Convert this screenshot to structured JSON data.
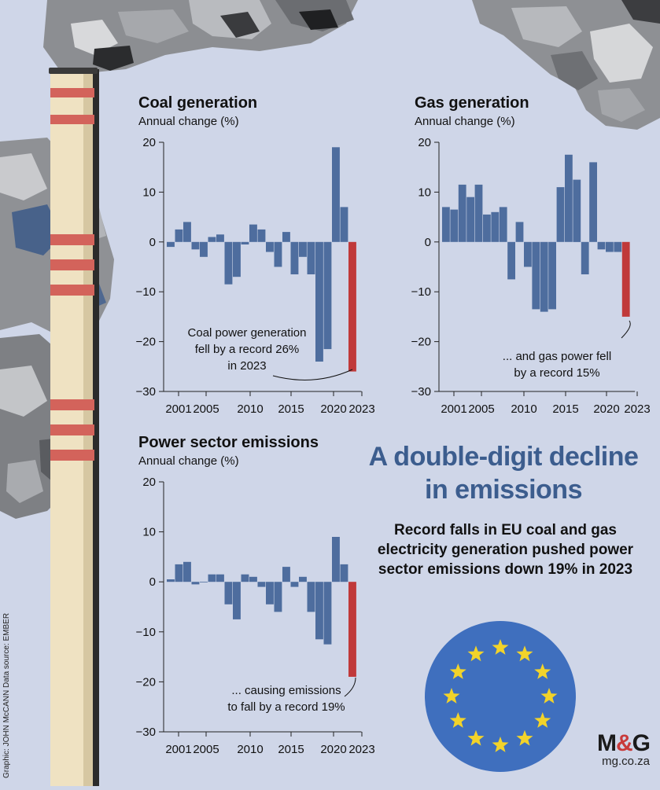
{
  "headline": "A double-digit decline in emissions",
  "subheadline": "Record falls in EU coal and gas electricity generation pushed power sector emissions down 19% in 2023",
  "credit": "Graphic: JOHN McCANN  Data source: EMBER",
  "brand": {
    "logo_left": "M",
    "logo_amp": "&",
    "logo_right": "G",
    "url": "mg.co.za"
  },
  "colors": {
    "bar": "#4e6d9e",
    "highlight": "#c0393a",
    "background": "#cfd6e8",
    "headline": "#3c5d8e",
    "axis": "#222222"
  },
  "chart_data": [
    {
      "type": "bar",
      "title": "Coal generation",
      "ylabel": "Annual change (%)",
      "ylim": [
        -30,
        20
      ],
      "yticks": [
        "20",
        "10",
        "0",
        "−10",
        "−20",
        "−30"
      ],
      "xticks": [
        "2001",
        "2005",
        "2010",
        "2015",
        "2020",
        "2023"
      ],
      "x": [
        2001,
        2002,
        2003,
        2004,
        2005,
        2006,
        2007,
        2008,
        2009,
        2010,
        2011,
        2012,
        2013,
        2014,
        2015,
        2016,
        2017,
        2018,
        2019,
        2020,
        2021,
        2022,
        2023
      ],
      "values": [
        -1,
        2.5,
        4,
        -1.5,
        -3,
        1,
        1.5,
        -8.5,
        -7,
        -0.5,
        3.5,
        2.5,
        -2,
        -5,
        2,
        -6.5,
        -3,
        -6.5,
        -24,
        -21.5,
        19,
        7,
        -26
      ],
      "highlight_index": 22,
      "annotation": [
        "Coal power generation",
        "fell by a record 26%",
        "in 2023"
      ]
    },
    {
      "type": "bar",
      "title": "Gas generation",
      "ylabel": "Annual change (%)",
      "ylim": [
        -30,
        20
      ],
      "yticks": [
        "20",
        "10",
        "0",
        "−10",
        "−20",
        "−30"
      ],
      "xticks": [
        "2001",
        "2005",
        "2010",
        "2015",
        "2020",
        "2023"
      ],
      "x": [
        2001,
        2002,
        2003,
        2004,
        2005,
        2006,
        2007,
        2008,
        2009,
        2010,
        2011,
        2012,
        2013,
        2014,
        2015,
        2016,
        2017,
        2018,
        2019,
        2020,
        2021,
        2022,
        2023
      ],
      "values": [
        7,
        6.5,
        11.5,
        9,
        11.5,
        5.5,
        6,
        7,
        -7.5,
        4,
        -5,
        -13.5,
        -14,
        -13.5,
        11,
        17.5,
        12.5,
        -6.5,
        16,
        -1.5,
        -2,
        -2,
        -15
      ],
      "highlight_index": 22,
      "annotation": [
        "... and gas power fell",
        "by a record 15%"
      ]
    },
    {
      "type": "bar",
      "title": "Power sector emissions",
      "ylabel": "Annual change (%)",
      "ylim": [
        -30,
        20
      ],
      "yticks": [
        "20",
        "10",
        "0",
        "−10",
        "−20",
        "−30"
      ],
      "xticks": [
        "2001",
        "2005",
        "2010",
        "2015",
        "2020",
        "2023"
      ],
      "x": [
        2001,
        2002,
        2003,
        2004,
        2005,
        2006,
        2007,
        2008,
        2009,
        2010,
        2011,
        2012,
        2013,
        2014,
        2015,
        2016,
        2017,
        2018,
        2019,
        2020,
        2021,
        2022,
        2023
      ],
      "values": [
        0.5,
        3.5,
        4,
        -0.5,
        0,
        1.5,
        1.5,
        -4.5,
        -7.5,
        1.5,
        1,
        -1,
        -4.5,
        -6,
        3,
        -1,
        1,
        -6,
        -11.5,
        -12.5,
        9,
        3.5,
        -19
      ],
      "highlight_index": 22,
      "annotation": [
        "... causing emissions",
        "to fall by a record 19%"
      ]
    }
  ]
}
